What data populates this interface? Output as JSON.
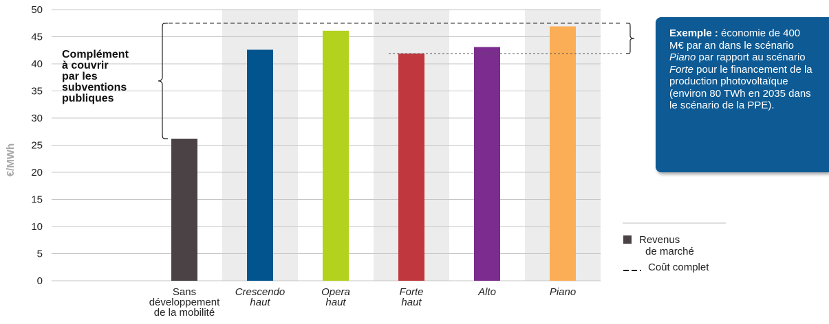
{
  "chart_data": {
    "type": "bar",
    "ylabel": "€/MWh",
    "ylim": [
      0,
      50
    ],
    "yticks": [
      0,
      5,
      10,
      15,
      20,
      25,
      30,
      35,
      40,
      45,
      50
    ],
    "grid": true,
    "categories": [
      {
        "lines": [
          "Sans",
          "développement",
          "de la mobilité"
        ],
        "italic": false
      },
      {
        "lines": [
          "Crescendo",
          "haut"
        ],
        "italic": true
      },
      {
        "lines": [
          "Opera",
          "haut"
        ],
        "italic": true
      },
      {
        "lines": [
          "Forte",
          "haut"
        ],
        "italic": true
      },
      {
        "lines": [
          "Alto"
        ],
        "italic": true
      },
      {
        "lines": [
          "Piano"
        ],
        "italic": true
      }
    ],
    "values": [
      26.2,
      42.6,
      46.1,
      41.9,
      43.1,
      46.9
    ],
    "colors": [
      "#4a4244",
      "#02548f",
      "#b2d21d",
      "#c0373d",
      "#7b2c8e",
      "#fbae55"
    ],
    "shaded_categories": [
      1,
      3,
      5
    ],
    "cout_complet": 47.5,
    "forte_reference": 41.9,
    "complement_label": [
      "Complément",
      "à couvrir",
      "par les",
      "subventions",
      "publiques"
    ],
    "legend": {
      "position": "bottom-right",
      "items": [
        {
          "label_lines": [
            "Revenus",
            "de marché"
          ],
          "style": "square",
          "color": "#4a4244"
        },
        {
          "label_lines": [
            "Coût complet"
          ],
          "style": "dashed",
          "color": "#222222"
        }
      ]
    }
  },
  "callout": {
    "bold": "Exemple :",
    "segments": [
      {
        "text": " économie de 400 M€ par an dans le scénario ",
        "italic": false
      },
      {
        "text": "Piano",
        "italic": true
      },
      {
        "text": " par rapport au scénario ",
        "italic": false
      },
      {
        "text": "Forte",
        "italic": true
      },
      {
        "text": " pour le financement de la production photovoltaïque (environ 80 TWh en 2035 dans le scénario de la PPE).",
        "italic": false
      }
    ]
  }
}
